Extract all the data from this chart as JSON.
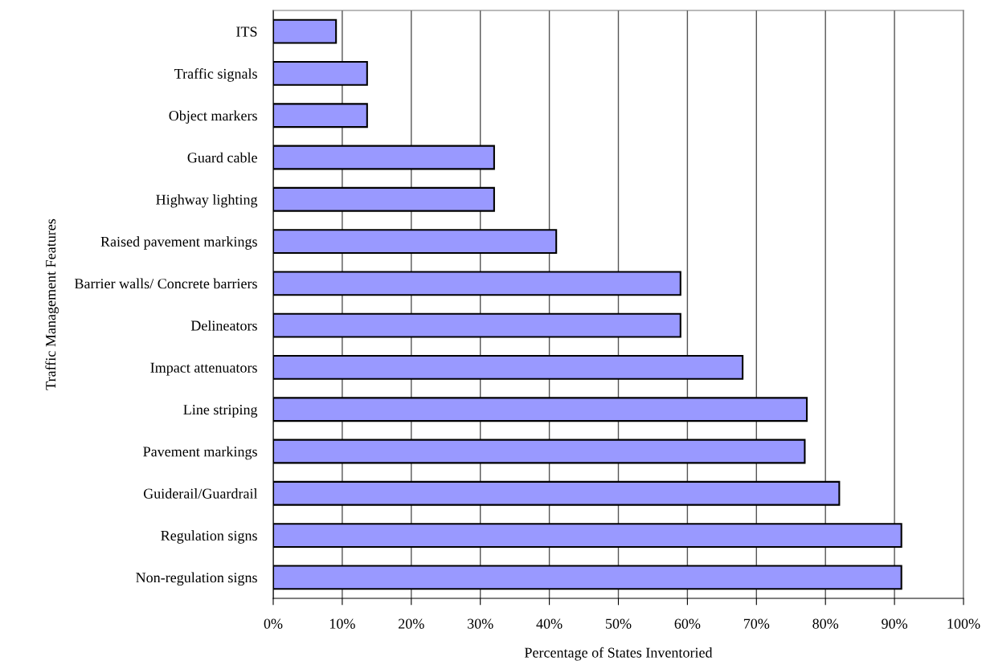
{
  "chart_data": {
    "type": "bar",
    "orientation": "horizontal",
    "xlabel": "Percentage of States Inventoried",
    "ylabel": "Traffic Management Features",
    "categories": [
      "ITS",
      "Traffic signals",
      "Object markers",
      "Guard cable",
      "Highway lighting",
      "Raised pavement markings",
      "Barrier walls/ Concrete barriers",
      "Delineators",
      "Impact attenuators",
      "Line striping",
      "Pavement markings",
      "Guiderail/Guardrail",
      "Regulation signs",
      "Non-regulation signs"
    ],
    "values": [
      9.1,
      13.6,
      13.6,
      32,
      32,
      41,
      59,
      59,
      68,
      77.3,
      77,
      82,
      91,
      91
    ],
    "color": "#9999ff",
    "xlim": [
      0,
      100
    ],
    "xticks": [
      {
        "value": 0,
        "label": "0%"
      },
      {
        "value": 10,
        "label": "10%"
      },
      {
        "value": 20,
        "label": "20%"
      },
      {
        "value": 30,
        "label": "30%"
      },
      {
        "value": 40,
        "label": "40%"
      },
      {
        "value": 50,
        "label": "50%"
      },
      {
        "value": 60,
        "label": "60%"
      },
      {
        "value": 70,
        "label": "70%"
      },
      {
        "value": 80,
        "label": "80%"
      },
      {
        "value": 90,
        "label": "90%"
      },
      {
        "value": 100,
        "label": "100%"
      }
    ],
    "grid": "x"
  }
}
